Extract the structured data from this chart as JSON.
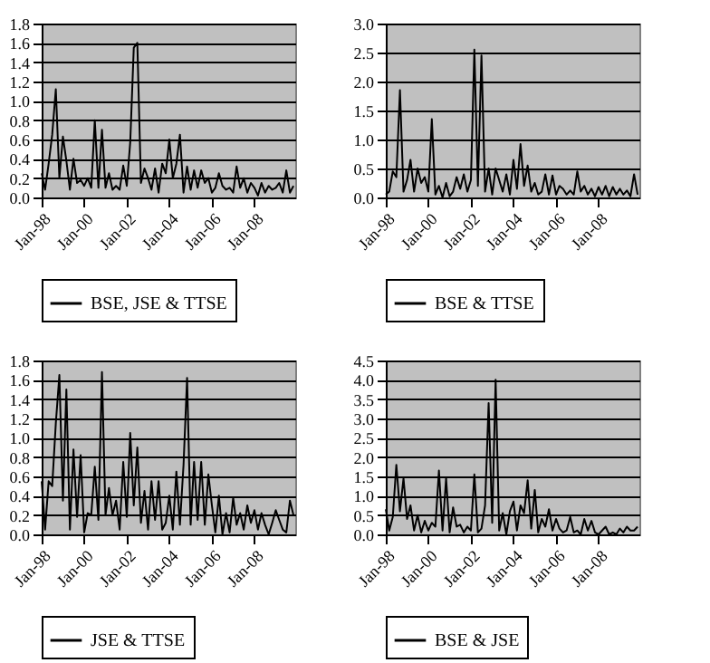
{
  "chart_data": [
    {
      "type": "line",
      "x": [
        "1998-01",
        "1998-03",
        "1998-05",
        "1998-07",
        "1998-09",
        "1998-11",
        "1999-01",
        "1999-03",
        "1999-05",
        "1999-07",
        "1999-09",
        "1999-11",
        "2000-01",
        "2000-03",
        "2000-05",
        "2000-07",
        "2000-09",
        "2000-11",
        "2001-01",
        "2001-03",
        "2001-05",
        "2001-07",
        "2001-09",
        "2001-11",
        "2002-01",
        "2002-03",
        "2002-05",
        "2002-07",
        "2002-09",
        "2002-11",
        "2003-01",
        "2003-03",
        "2003-05",
        "2003-07",
        "2003-09",
        "2003-11",
        "2004-01",
        "2004-03",
        "2004-05",
        "2004-07",
        "2004-09",
        "2004-11",
        "2005-01",
        "2005-03",
        "2005-05",
        "2005-07",
        "2005-09",
        "2005-11",
        "2006-01",
        "2006-03",
        "2006-05",
        "2006-07",
        "2006-09",
        "2006-11",
        "2007-01",
        "2007-03",
        "2007-05",
        "2007-07",
        "2007-09",
        "2007-11",
        "2008-01",
        "2008-03",
        "2008-05",
        "2008-07",
        "2008-09",
        "2008-11",
        "2009-01",
        "2009-03",
        "2009-05",
        "2009-07",
        "2009-09",
        "2009-11"
      ],
      "series": [
        {
          "name": "BSE, JSE & TTSE",
          "color": "#000000",
          "values": [
            0.25,
            0.08,
            0.35,
            0.65,
            1.12,
            0.2,
            0.63,
            0.38,
            0.08,
            0.4,
            0.15,
            0.18,
            0.12,
            0.2,
            0.1,
            0.8,
            0.1,
            0.7,
            0.1,
            0.25,
            0.08,
            0.12,
            0.08,
            0.33,
            0.12,
            0.57,
            1.55,
            1.6,
            0.15,
            0.3,
            0.2,
            0.08,
            0.3,
            0.05,
            0.35,
            0.25,
            0.6,
            0.2,
            0.35,
            0.65,
            0.05,
            0.32,
            0.08,
            0.28,
            0.1,
            0.28,
            0.15,
            0.2,
            0.05,
            0.1,
            0.25,
            0.12,
            0.08,
            0.1,
            0.05,
            0.32,
            0.1,
            0.2,
            0.05,
            0.15,
            0.1,
            0.02,
            0.15,
            0.05,
            0.12,
            0.08,
            0.1,
            0.15,
            0.05,
            0.28,
            0.05,
            0.12
          ]
        }
      ],
      "xlim": [
        "1998-01",
        "2009-12"
      ],
      "xticks": [
        {
          "value": "1998-01",
          "label": "Jan-98"
        },
        {
          "value": "2000-01",
          "label": "Jan-00"
        },
        {
          "value": "2002-01",
          "label": "Jan-02"
        },
        {
          "value": "2004-01",
          "label": "Jan-04"
        },
        {
          "value": "2006-01",
          "label": "Jan-06"
        },
        {
          "value": "2008-01",
          "label": "Jan-08"
        }
      ],
      "ylim": [
        0,
        1.8
      ],
      "yticks": [
        {
          "value": 0,
          "label": "0.0"
        },
        {
          "value": 0.2,
          "label": "0.2"
        },
        {
          "value": 0.4,
          "label": "0.4"
        },
        {
          "value": 0.6,
          "label": "0.6"
        },
        {
          "value": 0.8,
          "label": "0.8"
        },
        {
          "value": 1,
          "label": "1.0"
        },
        {
          "value": 1.2,
          "label": "1.2"
        },
        {
          "value": 1.4,
          "label": "1.4"
        },
        {
          "value": 1.6,
          "label": "1.6"
        },
        {
          "value": 1.8,
          "label": "1.8"
        }
      ],
      "grid": "y",
      "legend": "bottom",
      "marker": "none"
    },
    {
      "type": "line",
      "x": [
        "1998-01",
        "1998-03",
        "1998-05",
        "1998-07",
        "1998-09",
        "1998-11",
        "1999-01",
        "1999-03",
        "1999-05",
        "1999-07",
        "1999-09",
        "1999-11",
        "2000-01",
        "2000-03",
        "2000-05",
        "2000-07",
        "2000-09",
        "2000-11",
        "2001-01",
        "2001-03",
        "2001-05",
        "2001-07",
        "2001-09",
        "2001-11",
        "2002-01",
        "2002-03",
        "2002-05",
        "2002-07",
        "2002-09",
        "2002-11",
        "2003-01",
        "2003-03",
        "2003-05",
        "2003-07",
        "2003-09",
        "2003-11",
        "2004-01",
        "2004-03",
        "2004-05",
        "2004-07",
        "2004-09",
        "2004-11",
        "2005-01",
        "2005-03",
        "2005-05",
        "2005-07",
        "2005-09",
        "2005-11",
        "2006-01",
        "2006-03",
        "2006-05",
        "2006-07",
        "2006-09",
        "2006-11",
        "2007-01",
        "2007-03",
        "2007-05",
        "2007-07",
        "2007-09",
        "2007-11",
        "2008-01",
        "2008-03",
        "2008-05",
        "2008-07",
        "2008-09",
        "2008-11",
        "2009-01",
        "2009-03",
        "2009-05",
        "2009-07",
        "2009-09",
        "2009-11"
      ],
      "series": [
        {
          "name": "BSE & TTSE",
          "color": "#000000",
          "values": [
            0.05,
            0.1,
            0.45,
            0.35,
            1.85,
            0.1,
            0.3,
            0.65,
            0.1,
            0.5,
            0.25,
            0.35,
            0.1,
            1.35,
            0.05,
            0.2,
            0,
            0.25,
            0.02,
            0.1,
            0.35,
            0.15,
            0.4,
            0.1,
            0.3,
            2.55,
            0.2,
            2.45,
            0.1,
            0.5,
            0.05,
            0.5,
            0.3,
            0.1,
            0.4,
            0.05,
            0.65,
            0.15,
            0.92,
            0.2,
            0.55,
            0.1,
            0.25,
            0.05,
            0.1,
            0.4,
            0.05,
            0.38,
            0.05,
            0.2,
            0.15,
            0.05,
            0.12,
            0.05,
            0.45,
            0.1,
            0.2,
            0.05,
            0.15,
            0.02,
            0.18,
            0.05,
            0.2,
            0.02,
            0.18,
            0.05,
            0.15,
            0.05,
            0.12,
            0.02,
            0.4,
            0.05
          ]
        }
      ],
      "xlim": [
        "1998-01",
        "2009-12"
      ],
      "xticks": [
        {
          "value": "1998-01",
          "label": "Jan-98"
        },
        {
          "value": "2000-01",
          "label": "Jan-00"
        },
        {
          "value": "2002-01",
          "label": "Jan-02"
        },
        {
          "value": "2004-01",
          "label": "Jan-04"
        },
        {
          "value": "2006-01",
          "label": "Jan-06"
        },
        {
          "value": "2008-01",
          "label": "Jan-08"
        }
      ],
      "ylim": [
        0,
        3
      ],
      "yticks": [
        {
          "value": 0,
          "label": "0.0"
        },
        {
          "value": 0.5,
          "label": "0.5"
        },
        {
          "value": 1,
          "label": "1.0"
        },
        {
          "value": 1.5,
          "label": "1.5"
        },
        {
          "value": 2,
          "label": "2.0"
        },
        {
          "value": 2.5,
          "label": "2.5"
        },
        {
          "value": 3,
          "label": "3.0"
        }
      ],
      "grid": "y",
      "legend": "bottom",
      "marker": "none"
    },
    {
      "type": "line",
      "x": [
        "1998-01",
        "1998-03",
        "1998-05",
        "1998-07",
        "1998-09",
        "1998-11",
        "1999-01",
        "1999-03",
        "1999-05",
        "1999-07",
        "1999-09",
        "1999-11",
        "2000-01",
        "2000-03",
        "2000-05",
        "2000-07",
        "2000-09",
        "2000-11",
        "2001-01",
        "2001-03",
        "2001-05",
        "2001-07",
        "2001-09",
        "2001-11",
        "2002-01",
        "2002-03",
        "2002-05",
        "2002-07",
        "2002-09",
        "2002-11",
        "2003-01",
        "2003-03",
        "2003-05",
        "2003-07",
        "2003-09",
        "2003-11",
        "2004-01",
        "2004-03",
        "2004-05",
        "2004-07",
        "2004-09",
        "2004-11",
        "2005-01",
        "2005-03",
        "2005-05",
        "2005-07",
        "2005-09",
        "2005-11",
        "2006-01",
        "2006-03",
        "2006-05",
        "2006-07",
        "2006-09",
        "2006-11",
        "2007-01",
        "2007-03",
        "2007-05",
        "2007-07",
        "2007-09",
        "2007-11",
        "2008-01",
        "2008-03",
        "2008-05",
        "2008-07",
        "2008-09",
        "2008-11",
        "2009-01",
        "2009-03",
        "2009-05",
        "2009-07",
        "2009-09",
        "2009-11"
      ],
      "series": [
        {
          "name": "JSE & TTSE",
          "color": "#000000",
          "values": [
            0.55,
            0.05,
            0.55,
            0.5,
            1.15,
            1.65,
            0.35,
            1.5,
            0.05,
            0.88,
            0.18,
            0.82,
            0.02,
            0.22,
            0.2,
            0.7,
            0.15,
            1.68,
            0.2,
            0.48,
            0.2,
            0.35,
            0.05,
            0.75,
            0.18,
            1.05,
            0.3,
            0.9,
            0.12,
            0.45,
            0.05,
            0.55,
            0.15,
            0.55,
            0.05,
            0.12,
            0.4,
            0.05,
            0.65,
            0.1,
            0.72,
            1.62,
            0.1,
            0.75,
            0.15,
            0.75,
            0.1,
            0.62,
            0.3,
            0.02,
            0.4,
            0,
            0.22,
            0.02,
            0.38,
            0.1,
            0.22,
            0.05,
            0.3,
            0.12,
            0.25,
            0.05,
            0.22,
            0.1,
            0,
            0.12,
            0.25,
            0.15,
            0.05,
            0.02,
            0.35,
            0.2
          ]
        }
      ],
      "xlim": [
        "1998-01",
        "2009-12"
      ],
      "xticks": [
        {
          "value": "1998-01",
          "label": "Jan-98"
        },
        {
          "value": "2000-01",
          "label": "Jan-00"
        },
        {
          "value": "2002-01",
          "label": "Jan-02"
        },
        {
          "value": "2004-01",
          "label": "Jan-04"
        },
        {
          "value": "2006-01",
          "label": "Jan-06"
        },
        {
          "value": "2008-01",
          "label": "Jan-08"
        }
      ],
      "ylim": [
        0,
        1.8
      ],
      "yticks": [
        {
          "value": 0,
          "label": "0.0"
        },
        {
          "value": 0.2,
          "label": "0.2"
        },
        {
          "value": 0.4,
          "label": "0.4"
        },
        {
          "value": 0.6,
          "label": "0.6"
        },
        {
          "value": 0.8,
          "label": "0.8"
        },
        {
          "value": 1,
          "label": "1.0"
        },
        {
          "value": 1.2,
          "label": "1.2"
        },
        {
          "value": 1.4,
          "label": "1.4"
        },
        {
          "value": 1.6,
          "label": "1.6"
        },
        {
          "value": 1.8,
          "label": "1.8"
        }
      ],
      "grid": "y",
      "legend": "bottom",
      "marker": "none"
    },
    {
      "type": "line",
      "x": [
        "1998-01",
        "1998-03",
        "1998-05",
        "1998-07",
        "1998-09",
        "1998-11",
        "1999-01",
        "1999-03",
        "1999-05",
        "1999-07",
        "1999-09",
        "1999-11",
        "2000-01",
        "2000-03",
        "2000-05",
        "2000-07",
        "2000-09",
        "2000-11",
        "2001-01",
        "2001-03",
        "2001-05",
        "2001-07",
        "2001-09",
        "2001-11",
        "2002-01",
        "2002-03",
        "2002-05",
        "2002-07",
        "2002-09",
        "2002-11",
        "2003-01",
        "2003-03",
        "2003-05",
        "2003-07",
        "2003-09",
        "2003-11",
        "2004-01",
        "2004-03",
        "2004-05",
        "2004-07",
        "2004-09",
        "2004-11",
        "2005-01",
        "2005-03",
        "2005-05",
        "2005-07",
        "2005-09",
        "2005-11",
        "2006-01",
        "2006-03",
        "2006-05",
        "2006-07",
        "2006-09",
        "2006-11",
        "2007-01",
        "2007-03",
        "2007-05",
        "2007-07",
        "2007-09",
        "2007-11",
        "2008-01",
        "2008-03",
        "2008-05",
        "2008-07",
        "2008-09",
        "2008-11",
        "2009-01",
        "2009-03",
        "2009-05",
        "2009-07",
        "2009-09",
        "2009-11"
      ],
      "series": [
        {
          "name": "BSE & JSE",
          "color": "#000000",
          "values": [
            0.65,
            0.1,
            0.45,
            1.8,
            0.6,
            1.45,
            0.4,
            0.75,
            0.1,
            0.5,
            0.05,
            0.35,
            0.1,
            0.3,
            0.2,
            1.65,
            0.1,
            1.45,
            0.05,
            0.7,
            0.2,
            0.25,
            0.05,
            0.2,
            0.1,
            1.55,
            0.05,
            0.15,
            0.75,
            3.4,
            0.3,
            4,
            0.1,
            0.55,
            0,
            0.6,
            0.85,
            0.1,
            0.75,
            0.55,
            1.4,
            0.15,
            1.15,
            0.05,
            0.4,
            0.2,
            0.65,
            0.1,
            0.4,
            0.15,
            0.05,
            0.1,
            0.45,
            0.05,
            0.1,
            0,
            0.4,
            0.1,
            0.35,
            0.05,
            0,
            0.1,
            0.2,
            0,
            0.05,
            0,
            0.15,
            0.05,
            0.2,
            0.1,
            0.1,
            0.2
          ]
        }
      ],
      "xlim": [
        "1998-01",
        "2009-12"
      ],
      "xticks": [
        {
          "value": "1998-01",
          "label": "Jan-98"
        },
        {
          "value": "2000-01",
          "label": "Jan-00"
        },
        {
          "value": "2002-01",
          "label": "Jan-02"
        },
        {
          "value": "2004-01",
          "label": "Jan-04"
        },
        {
          "value": "2006-01",
          "label": "Jan-06"
        },
        {
          "value": "2008-01",
          "label": "Jan-08"
        }
      ],
      "ylim": [
        0,
        4.5
      ],
      "yticks": [
        {
          "value": 0,
          "label": "0.0"
        },
        {
          "value": 0.5,
          "label": "0.5"
        },
        {
          "value": 1,
          "label": "1.0"
        },
        {
          "value": 1.5,
          "label": "1.5"
        },
        {
          "value": 2,
          "label": "2.0"
        },
        {
          "value": 2.5,
          "label": "2.5"
        },
        {
          "value": 3,
          "label": "3.0"
        },
        {
          "value": 3.5,
          "label": "3.5"
        },
        {
          "value": 4,
          "label": "4.0"
        },
        {
          "value": 4.5,
          "label": "4.5"
        }
      ],
      "grid": "y",
      "legend": "bottom",
      "marker": "none"
    }
  ]
}
